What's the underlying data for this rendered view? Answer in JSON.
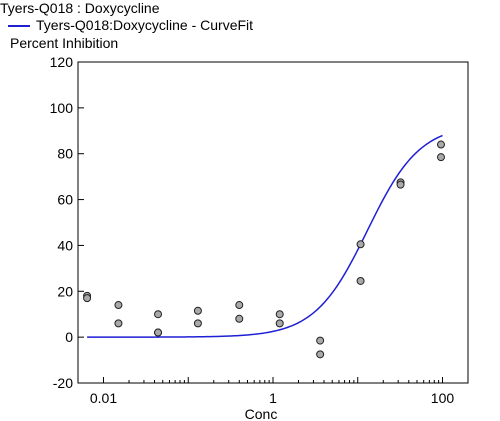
{
  "header": {
    "title": "Tyers-Q018  : Doxycycline",
    "legend_label": "Tyers-Q018:Doxycycline - CurveFit",
    "legend_color": "#1f1fd6"
  },
  "chart_data": {
    "type": "scatter",
    "title": "Tyers-Q018  : Doxycycline",
    "xlabel": "Conc",
    "ylabel": "Percent Inhibition",
    "xscale": "log",
    "xlim": [
      0.005,
      200
    ],
    "ylim": [
      -20,
      120
    ],
    "x_ticks": [
      {
        "value": 0.01,
        "label": "0.01"
      },
      {
        "value": 1,
        "label": "1"
      },
      {
        "value": 100,
        "label": "100"
      }
    ],
    "y_ticks": [
      -20,
      0,
      20,
      40,
      60,
      80,
      100,
      120
    ],
    "grid": false,
    "legend_position": "top-left",
    "series": [
      {
        "name": "Tyers-Q018:Doxycycline - CurveFit",
        "type": "line",
        "color": "#1f1fd6",
        "model": "4PL",
        "bottom": 0,
        "top": 93,
        "ec50": 13,
        "hill": 1.4
      },
      {
        "type": "scatter",
        "marker": "circle",
        "fill": "#a9a9a9",
        "x": [
          0.0064,
          0.0064,
          0.015,
          0.015,
          0.044,
          0.044,
          0.044,
          0.13,
          0.13,
          0.4,
          0.4,
          1.2,
          1.2,
          3.6,
          3.6,
          10.8,
          10.8,
          32,
          32,
          96,
          96
        ],
        "y": [
          18,
          17,
          14,
          6,
          10,
          2,
          2,
          11.5,
          6,
          14,
          8,
          10,
          6,
          -1.5,
          -7.5,
          40.5,
          24.5,
          67.5,
          66.5,
          84,
          78.5
        ]
      }
    ]
  }
}
